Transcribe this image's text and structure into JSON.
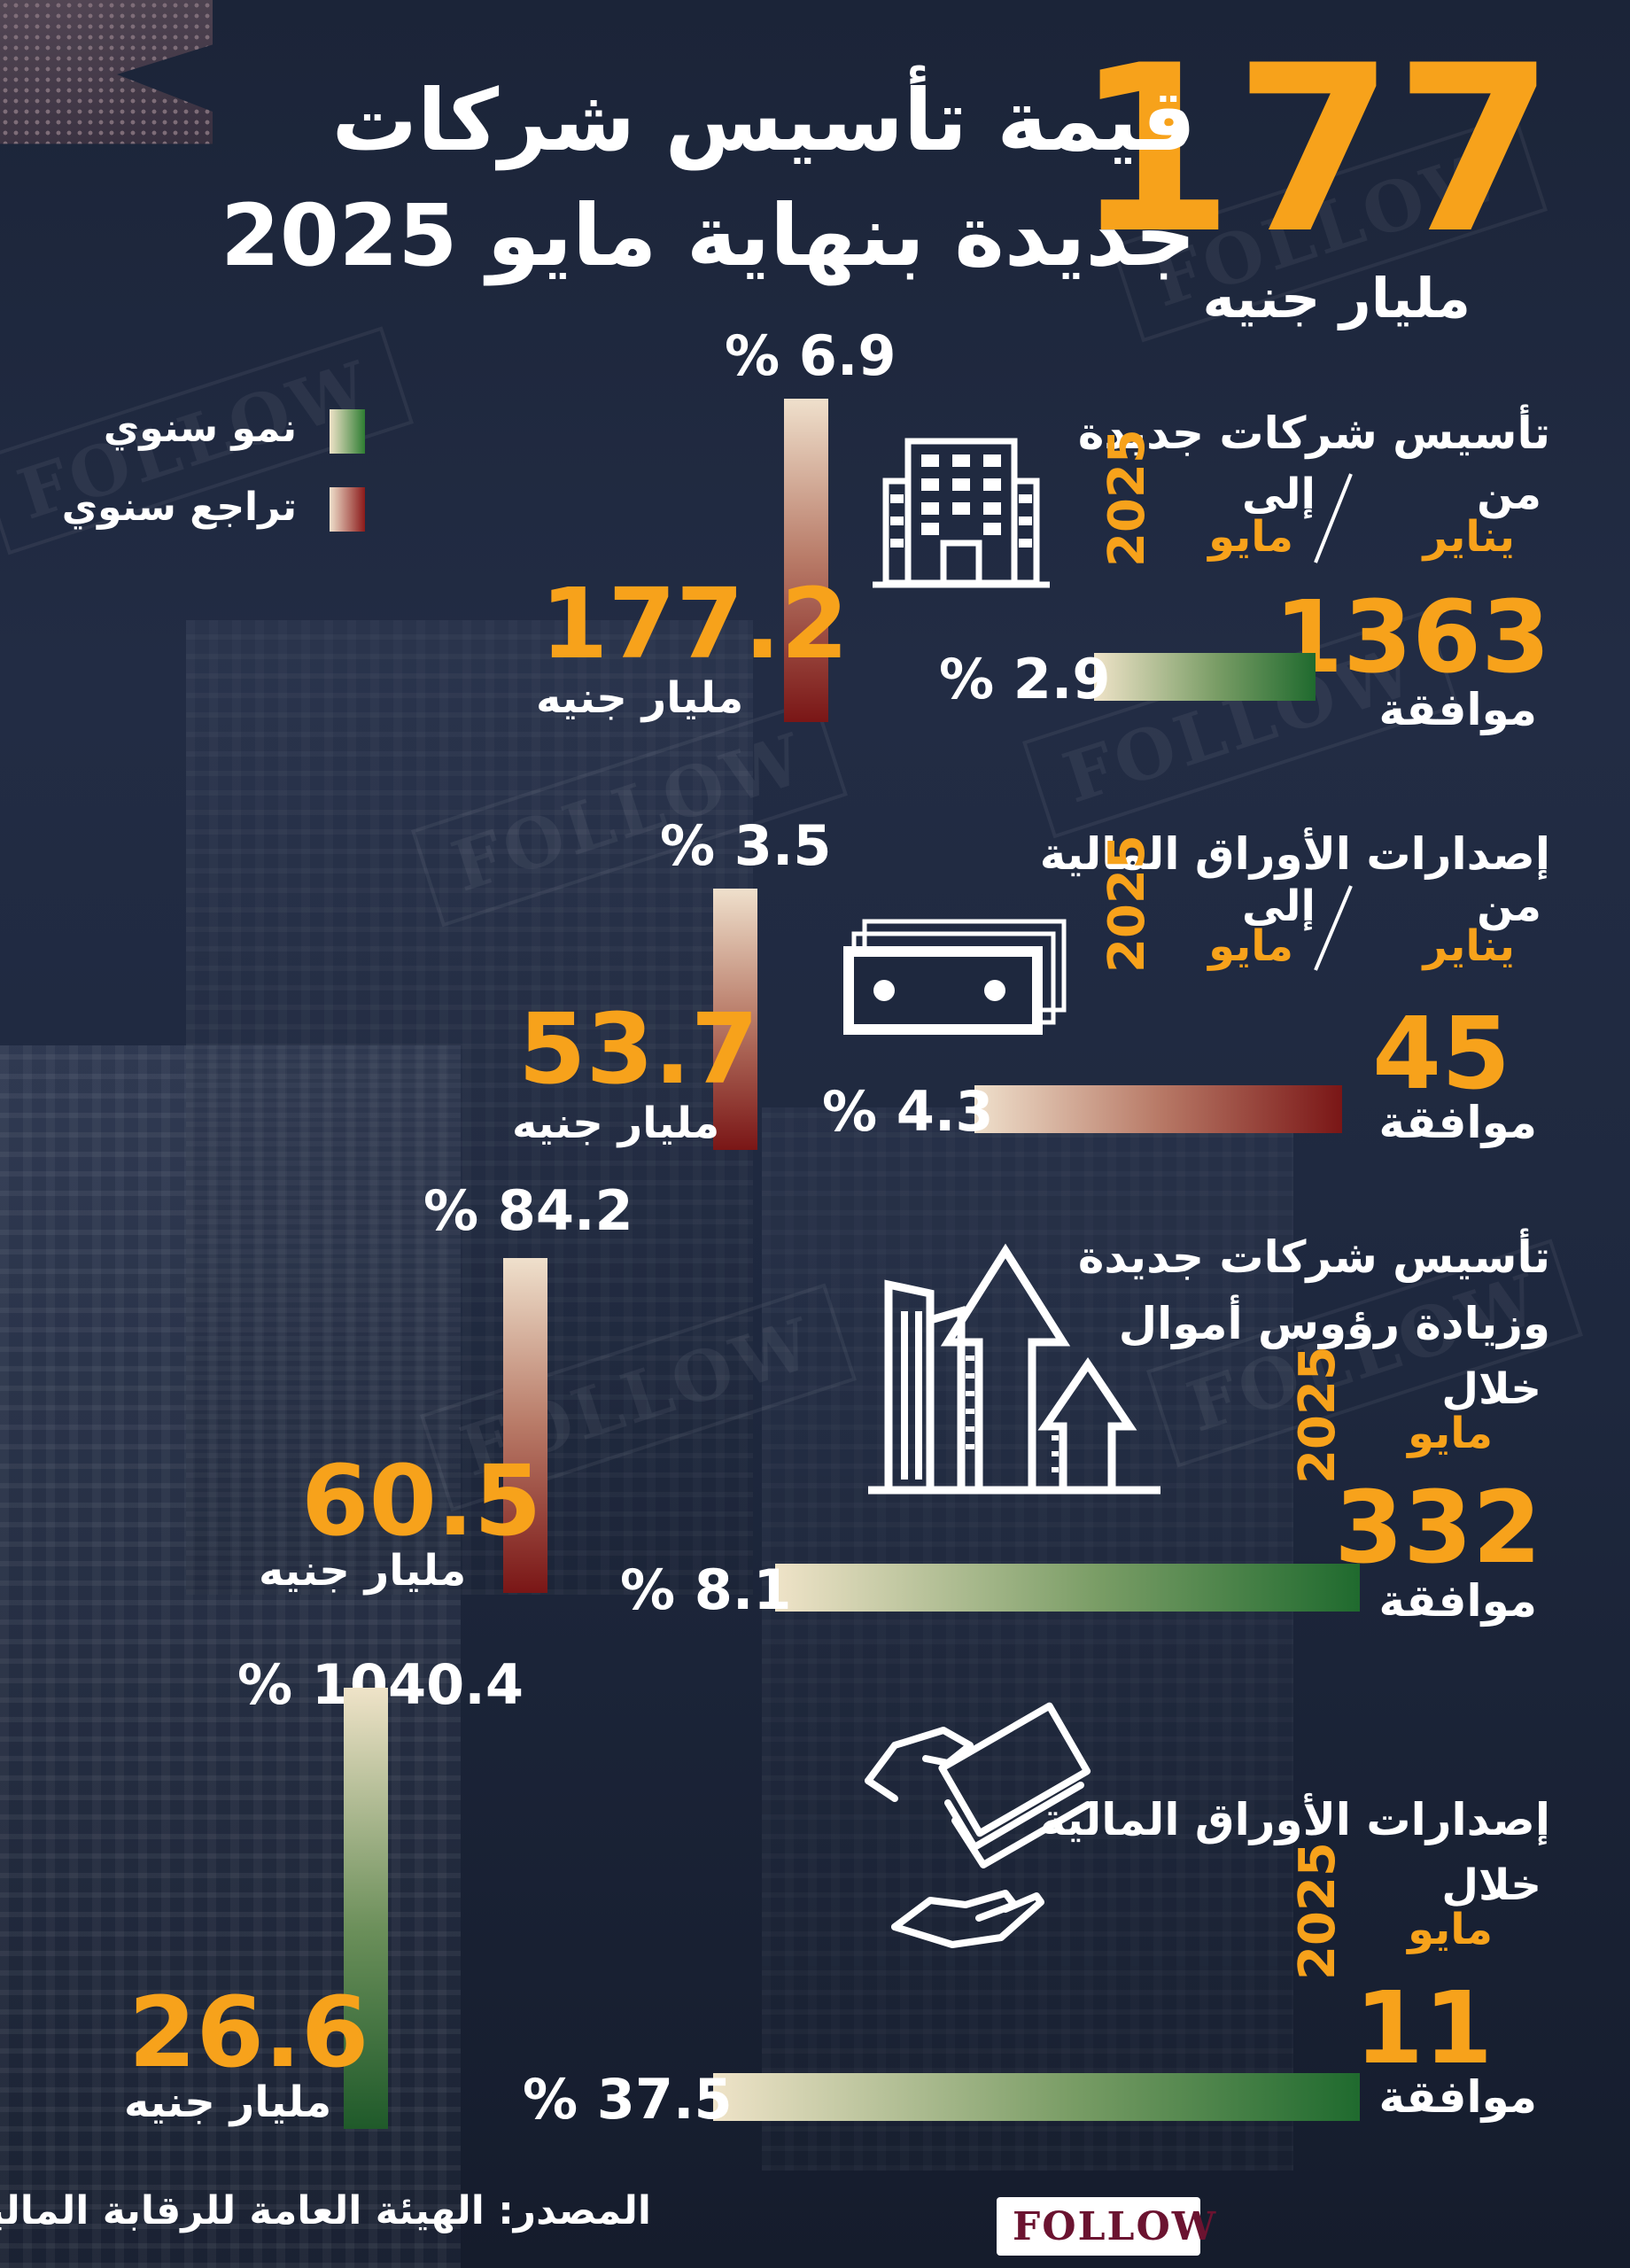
{
  "header": {
    "big_number": "177",
    "big_unit": "مليار جنيه",
    "title_line1": "قيمة تأسيس شركات",
    "title_line2": "جديدة بنهاية مايو 2025"
  },
  "legend": {
    "growth": "نمو سنوي",
    "decline": "تراجع سنوي",
    "growth_color": "#2e7d32",
    "decline_color": "#8b1a1a"
  },
  "sections": [
    {
      "title": "تأسيس شركات جديدة",
      "from_label": "من",
      "from_value": "يناير",
      "to_label": "إلى",
      "to_value": "مايو",
      "year": "2025",
      "count": "1363",
      "count_label": "موافقة",
      "count_change": "% 2.9",
      "value": "177.2",
      "value_unit": "مليار جنيه",
      "value_change": "% 6.9",
      "icon": "office-building-icon"
    },
    {
      "title": "إصدارات الأوراق المالية",
      "from_label": "من",
      "from_value": "يناير",
      "to_label": "إلى",
      "to_value": "مايو",
      "year": "2025",
      "count": "45",
      "count_label": "موافقة",
      "count_change": "% 4.3",
      "value": "53.7",
      "value_unit": "مليار جنيه",
      "value_change": "% 3.5",
      "icon": "banknotes-icon"
    },
    {
      "title_line1": "تأسيس شركات جديدة",
      "title_line2": "وزيادة رؤوس أموال",
      "period_label": "خلال",
      "period_value": "مايو",
      "year": "2025",
      "count": "332",
      "count_label": "موافقة",
      "count_change": "% 8.1",
      "value": "60.5",
      "value_unit": "مليار جنيه",
      "value_change": "% 84.2",
      "icon": "growth-buildings-icon"
    },
    {
      "title": "إصدارات الأوراق المالية",
      "period_label": "خلال",
      "period_value": "مايو",
      "year": "2025",
      "count": "11",
      "count_label": "موافقة",
      "count_change": "% 37.5",
      "value": "26.6",
      "value_unit": "مليار جنيه",
      "value_change": "% 1040.4",
      "icon": "money-hand-icon"
    }
  ],
  "footer": {
    "source": "المصدر: الهيئة العامة للرقابة المالية",
    "logo": "FOLLOW"
  }
}
